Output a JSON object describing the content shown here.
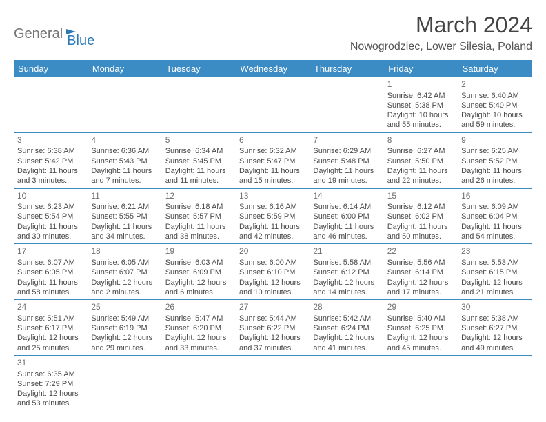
{
  "logo": {
    "text1": "General",
    "text2": "Blue"
  },
  "title": "March 2024",
  "location": "Nowogrodziec, Lower Silesia, Poland",
  "header_bg": "#3b8bc4",
  "header_fg": "#ffffff",
  "days": [
    "Sunday",
    "Monday",
    "Tuesday",
    "Wednesday",
    "Thursday",
    "Friday",
    "Saturday"
  ],
  "weeks": [
    [
      null,
      null,
      null,
      null,
      null,
      {
        "n": "1",
        "sr": "Sunrise: 6:42 AM",
        "ss": "Sunset: 5:38 PM",
        "dl1": "Daylight: 10 hours",
        "dl2": "and 55 minutes."
      },
      {
        "n": "2",
        "sr": "Sunrise: 6:40 AM",
        "ss": "Sunset: 5:40 PM",
        "dl1": "Daylight: 10 hours",
        "dl2": "and 59 minutes."
      }
    ],
    [
      {
        "n": "3",
        "sr": "Sunrise: 6:38 AM",
        "ss": "Sunset: 5:42 PM",
        "dl1": "Daylight: 11 hours",
        "dl2": "and 3 minutes."
      },
      {
        "n": "4",
        "sr": "Sunrise: 6:36 AM",
        "ss": "Sunset: 5:43 PM",
        "dl1": "Daylight: 11 hours",
        "dl2": "and 7 minutes."
      },
      {
        "n": "5",
        "sr": "Sunrise: 6:34 AM",
        "ss": "Sunset: 5:45 PM",
        "dl1": "Daylight: 11 hours",
        "dl2": "and 11 minutes."
      },
      {
        "n": "6",
        "sr": "Sunrise: 6:32 AM",
        "ss": "Sunset: 5:47 PM",
        "dl1": "Daylight: 11 hours",
        "dl2": "and 15 minutes."
      },
      {
        "n": "7",
        "sr": "Sunrise: 6:29 AM",
        "ss": "Sunset: 5:48 PM",
        "dl1": "Daylight: 11 hours",
        "dl2": "and 19 minutes."
      },
      {
        "n": "8",
        "sr": "Sunrise: 6:27 AM",
        "ss": "Sunset: 5:50 PM",
        "dl1": "Daylight: 11 hours",
        "dl2": "and 22 minutes."
      },
      {
        "n": "9",
        "sr": "Sunrise: 6:25 AM",
        "ss": "Sunset: 5:52 PM",
        "dl1": "Daylight: 11 hours",
        "dl2": "and 26 minutes."
      }
    ],
    [
      {
        "n": "10",
        "sr": "Sunrise: 6:23 AM",
        "ss": "Sunset: 5:54 PM",
        "dl1": "Daylight: 11 hours",
        "dl2": "and 30 minutes."
      },
      {
        "n": "11",
        "sr": "Sunrise: 6:21 AM",
        "ss": "Sunset: 5:55 PM",
        "dl1": "Daylight: 11 hours",
        "dl2": "and 34 minutes."
      },
      {
        "n": "12",
        "sr": "Sunrise: 6:18 AM",
        "ss": "Sunset: 5:57 PM",
        "dl1": "Daylight: 11 hours",
        "dl2": "and 38 minutes."
      },
      {
        "n": "13",
        "sr": "Sunrise: 6:16 AM",
        "ss": "Sunset: 5:59 PM",
        "dl1": "Daylight: 11 hours",
        "dl2": "and 42 minutes."
      },
      {
        "n": "14",
        "sr": "Sunrise: 6:14 AM",
        "ss": "Sunset: 6:00 PM",
        "dl1": "Daylight: 11 hours",
        "dl2": "and 46 minutes."
      },
      {
        "n": "15",
        "sr": "Sunrise: 6:12 AM",
        "ss": "Sunset: 6:02 PM",
        "dl1": "Daylight: 11 hours",
        "dl2": "and 50 minutes."
      },
      {
        "n": "16",
        "sr": "Sunrise: 6:09 AM",
        "ss": "Sunset: 6:04 PM",
        "dl1": "Daylight: 11 hours",
        "dl2": "and 54 minutes."
      }
    ],
    [
      {
        "n": "17",
        "sr": "Sunrise: 6:07 AM",
        "ss": "Sunset: 6:05 PM",
        "dl1": "Daylight: 11 hours",
        "dl2": "and 58 minutes."
      },
      {
        "n": "18",
        "sr": "Sunrise: 6:05 AM",
        "ss": "Sunset: 6:07 PM",
        "dl1": "Daylight: 12 hours",
        "dl2": "and 2 minutes."
      },
      {
        "n": "19",
        "sr": "Sunrise: 6:03 AM",
        "ss": "Sunset: 6:09 PM",
        "dl1": "Daylight: 12 hours",
        "dl2": "and 6 minutes."
      },
      {
        "n": "20",
        "sr": "Sunrise: 6:00 AM",
        "ss": "Sunset: 6:10 PM",
        "dl1": "Daylight: 12 hours",
        "dl2": "and 10 minutes."
      },
      {
        "n": "21",
        "sr": "Sunrise: 5:58 AM",
        "ss": "Sunset: 6:12 PM",
        "dl1": "Daylight: 12 hours",
        "dl2": "and 14 minutes."
      },
      {
        "n": "22",
        "sr": "Sunrise: 5:56 AM",
        "ss": "Sunset: 6:14 PM",
        "dl1": "Daylight: 12 hours",
        "dl2": "and 17 minutes."
      },
      {
        "n": "23",
        "sr": "Sunrise: 5:53 AM",
        "ss": "Sunset: 6:15 PM",
        "dl1": "Daylight: 12 hours",
        "dl2": "and 21 minutes."
      }
    ],
    [
      {
        "n": "24",
        "sr": "Sunrise: 5:51 AM",
        "ss": "Sunset: 6:17 PM",
        "dl1": "Daylight: 12 hours",
        "dl2": "and 25 minutes."
      },
      {
        "n": "25",
        "sr": "Sunrise: 5:49 AM",
        "ss": "Sunset: 6:19 PM",
        "dl1": "Daylight: 12 hours",
        "dl2": "and 29 minutes."
      },
      {
        "n": "26",
        "sr": "Sunrise: 5:47 AM",
        "ss": "Sunset: 6:20 PM",
        "dl1": "Daylight: 12 hours",
        "dl2": "and 33 minutes."
      },
      {
        "n": "27",
        "sr": "Sunrise: 5:44 AM",
        "ss": "Sunset: 6:22 PM",
        "dl1": "Daylight: 12 hours",
        "dl2": "and 37 minutes."
      },
      {
        "n": "28",
        "sr": "Sunrise: 5:42 AM",
        "ss": "Sunset: 6:24 PM",
        "dl1": "Daylight: 12 hours",
        "dl2": "and 41 minutes."
      },
      {
        "n": "29",
        "sr": "Sunrise: 5:40 AM",
        "ss": "Sunset: 6:25 PM",
        "dl1": "Daylight: 12 hours",
        "dl2": "and 45 minutes."
      },
      {
        "n": "30",
        "sr": "Sunrise: 5:38 AM",
        "ss": "Sunset: 6:27 PM",
        "dl1": "Daylight: 12 hours",
        "dl2": "and 49 minutes."
      }
    ],
    [
      {
        "n": "31",
        "sr": "Sunrise: 6:35 AM",
        "ss": "Sunset: 7:29 PM",
        "dl1": "Daylight: 12 hours",
        "dl2": "and 53 minutes."
      },
      null,
      null,
      null,
      null,
      null,
      null
    ]
  ]
}
